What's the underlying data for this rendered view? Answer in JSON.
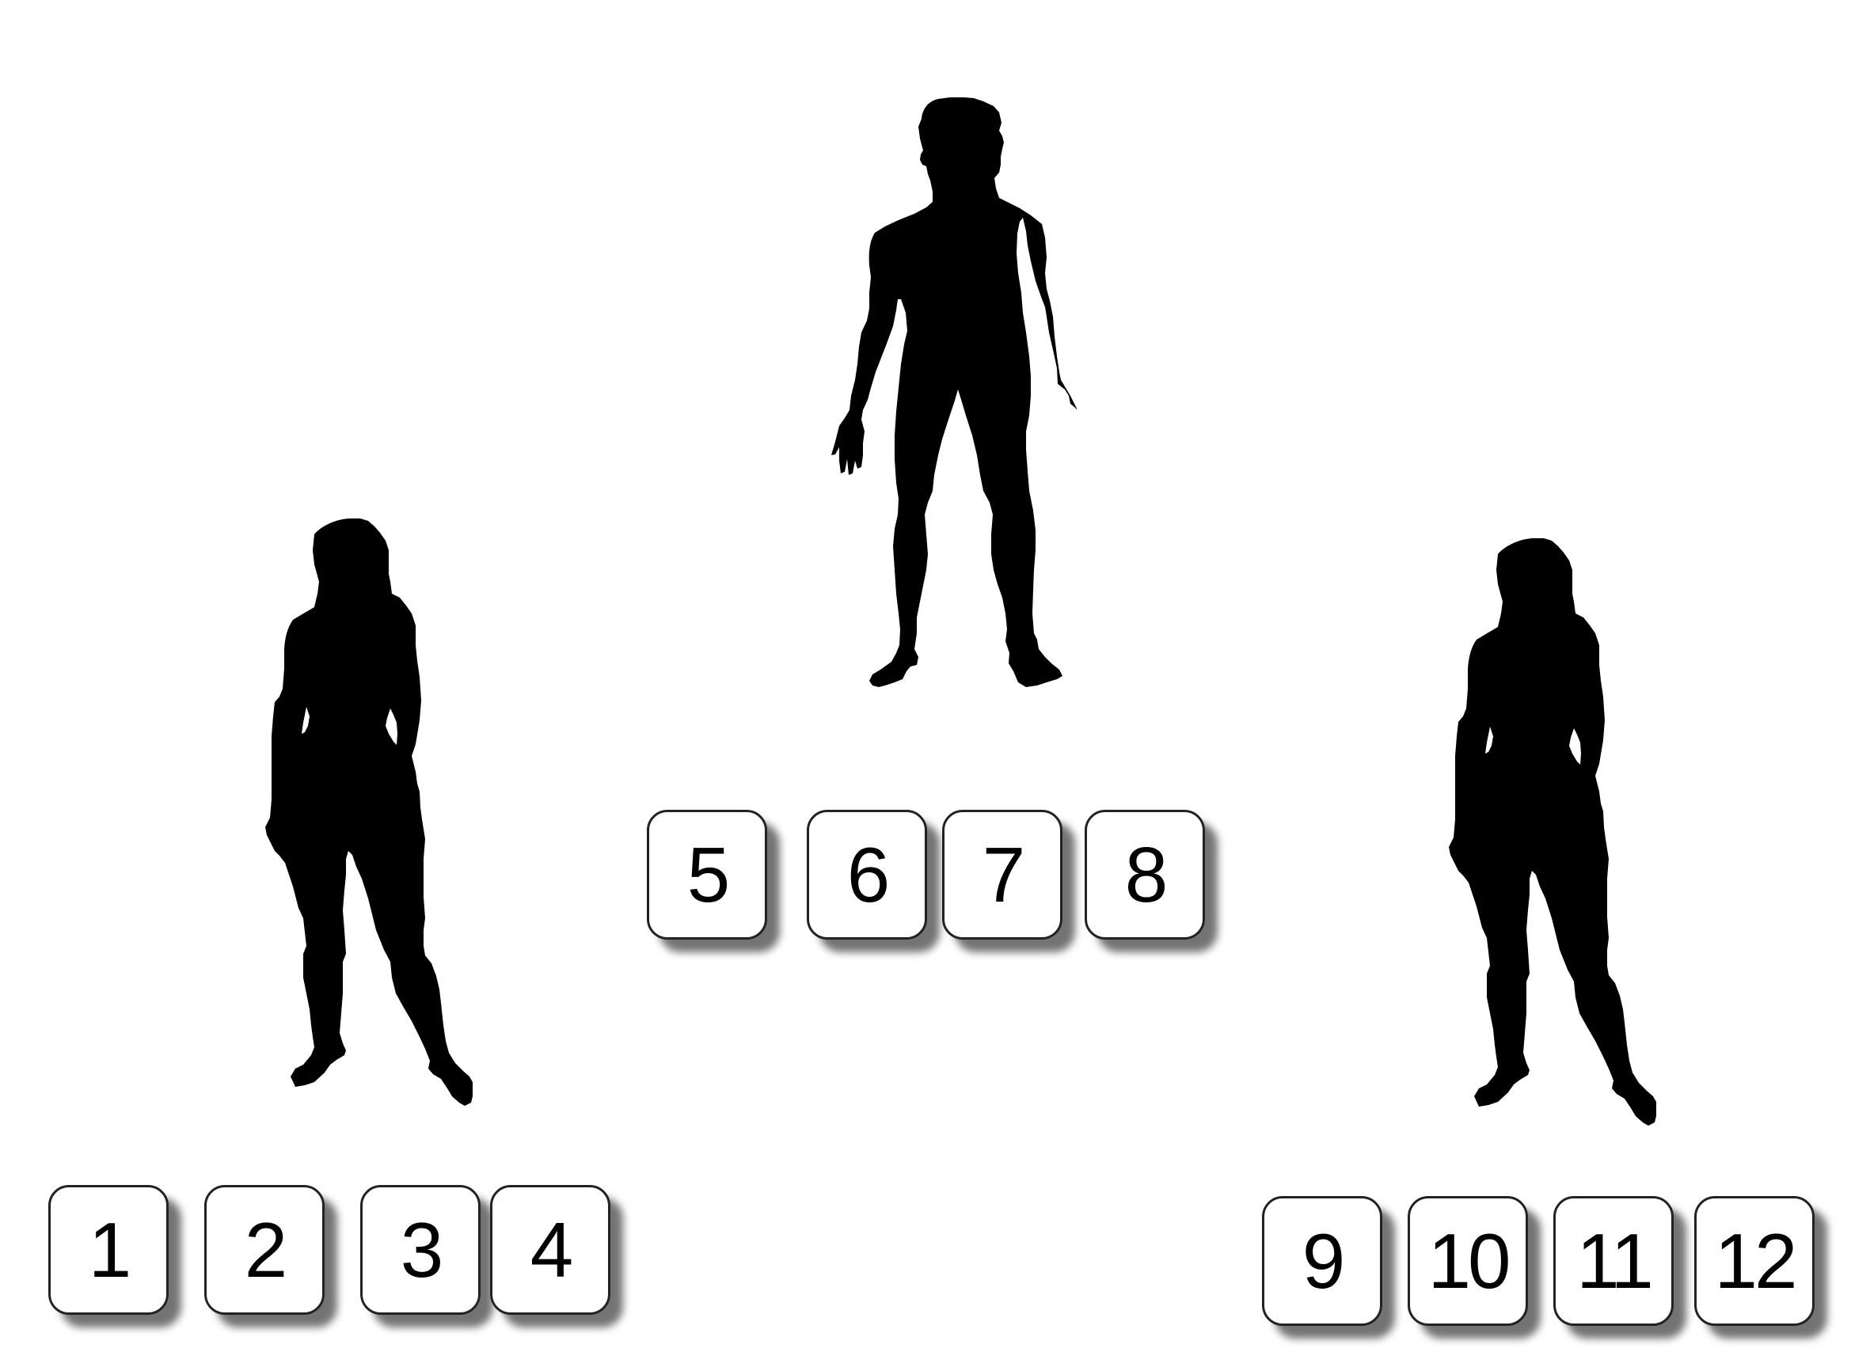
{
  "figures": [
    {
      "id": "woman-left",
      "label": "female silhouette"
    },
    {
      "id": "man-center",
      "label": "male silhouette"
    },
    {
      "id": "woman-right",
      "label": "female silhouette"
    }
  ],
  "tiles": {
    "t1": "1",
    "t2": "2",
    "t3": "3",
    "t4": "4",
    "t5": "5",
    "t6": "6",
    "t7": "7",
    "t8": "8",
    "t9": "9",
    "t10": "10",
    "t11": "11",
    "t12": "12"
  },
  "colors": {
    "silhouette": "#000000",
    "tile_border": "#222222",
    "background": "#ffffff"
  }
}
